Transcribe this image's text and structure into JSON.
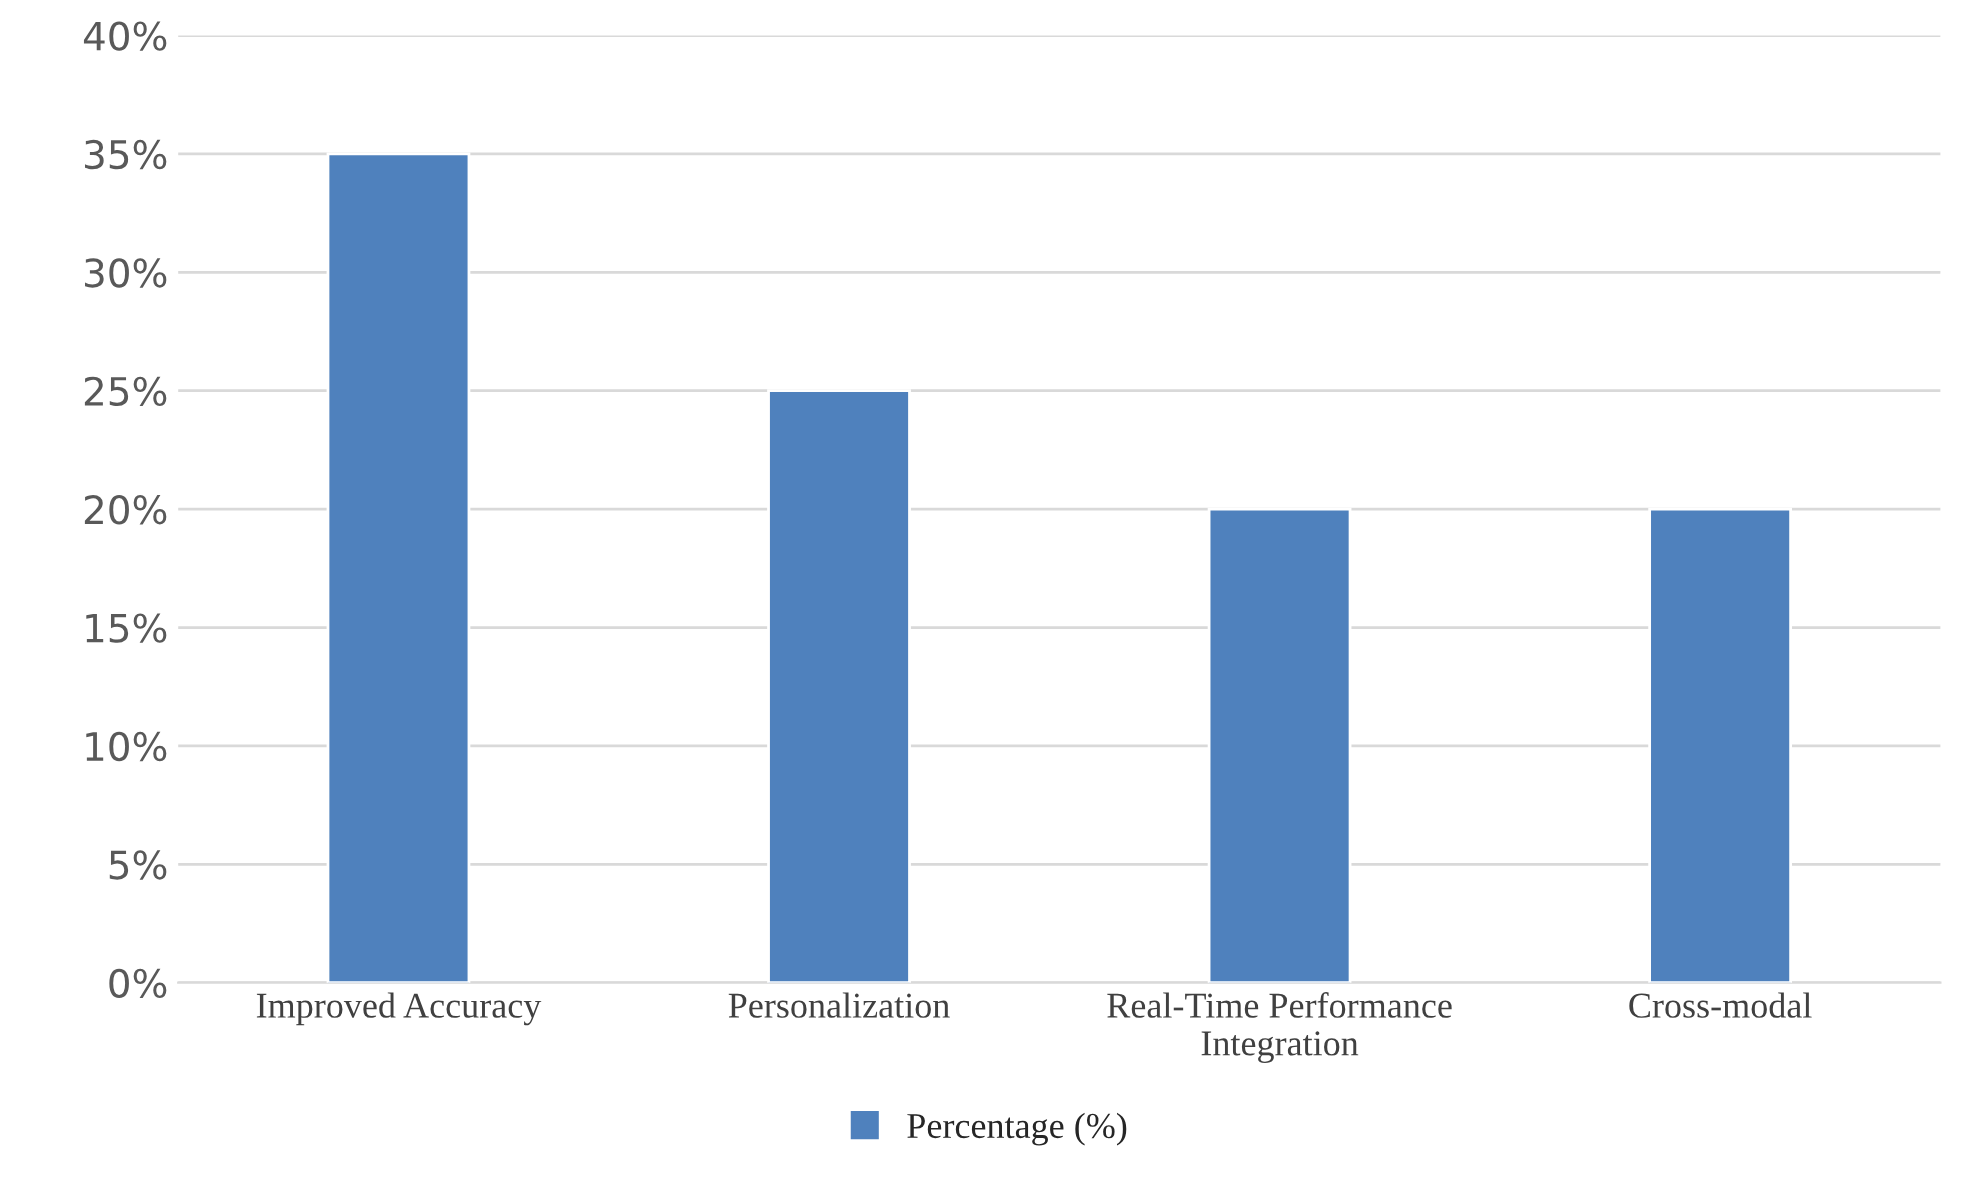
{
  "chart_data": {
    "type": "bar",
    "categories": [
      "Improved Accuracy",
      "Personalization",
      "Real-Time Performance Integration",
      "Cross-modal"
    ],
    "series": [
      {
        "name": "Percentage (%)",
        "color": "#4f81bd",
        "values": [
          35,
          25,
          20,
          20
        ]
      }
    ],
    "ylim": [
      0,
      40
    ],
    "yticks": [
      {
        "value": 0,
        "label": "0%"
      },
      {
        "value": 5,
        "label": "5%"
      },
      {
        "value": 10,
        "label": "10%"
      },
      {
        "value": 15,
        "label": "15%"
      },
      {
        "value": 20,
        "label": "20%"
      },
      {
        "value": 25,
        "label": "25%"
      },
      {
        "value": 30,
        "label": "30%"
      },
      {
        "value": 35,
        "label": "35%"
      },
      {
        "value": 40,
        "label": "40%"
      }
    ],
    "grid": "y",
    "legend": "bottom"
  }
}
